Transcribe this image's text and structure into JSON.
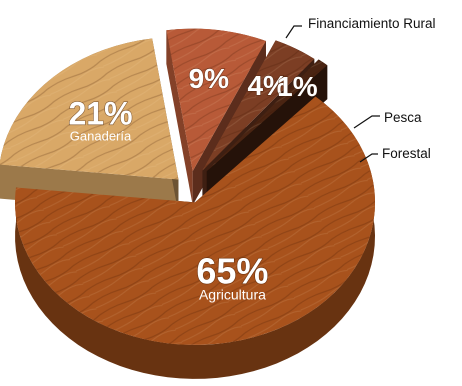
{
  "chart_data": {
    "type": "pie",
    "title": "",
    "slices": [
      {
        "name": "Agricultura",
        "value": 65,
        "percent_label": "65%",
        "show_name_inside": true,
        "color": "#a8521c"
      },
      {
        "name": "Ganadería",
        "value": 21,
        "percent_label": "21%",
        "show_name_inside": true,
        "color": "#d9a867"
      },
      {
        "name": "Financiamiento Rural",
        "value": 9,
        "percent_label": "9%",
        "show_name_inside": false,
        "color": "#b85a38"
      },
      {
        "name": "Pesca",
        "value": 4,
        "percent_label": "4%",
        "show_name_inside": false,
        "color": "#7c3e24"
      },
      {
        "name": "Forestal",
        "value": 1,
        "percent_label": "1%",
        "show_name_inside": false,
        "color": "#4a2412"
      }
    ],
    "legend": "callouts-right",
    "style": "3d-exploded-wood"
  }
}
